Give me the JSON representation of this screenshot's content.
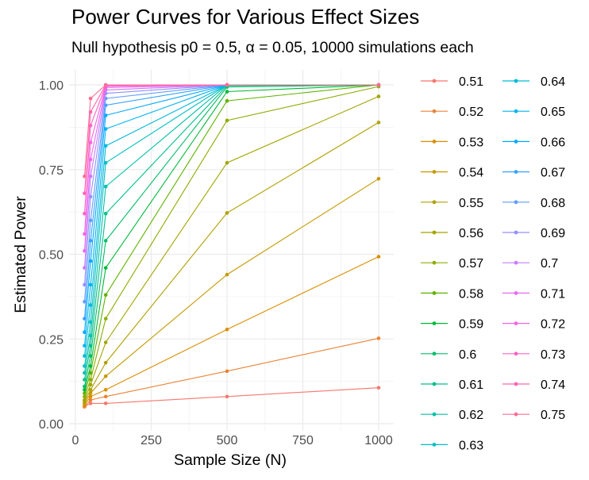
{
  "chart_data": {
    "type": "line",
    "title": "Power Curves for Various Effect Sizes",
    "subtitle": "Null hypothesis p0 = 0.5, α = 0.05, 10000 simulations each",
    "xlabel": "Sample Size (N)",
    "ylabel": "Estimated Power",
    "xlim": [
      0,
      1000
    ],
    "ylim": [
      0,
      1
    ],
    "x_ticks": [
      "0",
      "250",
      "500",
      "750",
      "1000"
    ],
    "y_ticks": [
      "0.00",
      "0.25",
      "0.50",
      "0.75",
      "1.00"
    ],
    "grid": true,
    "legend_position": "right",
    "x": [
      30,
      50,
      100,
      500,
      1000
    ],
    "series": [
      {
        "name": "0.51",
        "color": "#F8766D",
        "values": [
          0.05,
          0.06,
          0.06,
          0.08,
          0.106
        ]
      },
      {
        "name": "0.52",
        "color": "#EB8335",
        "values": [
          0.05,
          0.07,
          0.08,
          0.155,
          0.252
        ]
      },
      {
        "name": "0.53",
        "color": "#DA8F00",
        "values": [
          0.055,
          0.08,
          0.1,
          0.278,
          0.493
        ]
      },
      {
        "name": "0.54",
        "color": "#C49A00",
        "values": [
          0.06,
          0.09,
          0.14,
          0.44,
          0.723
        ]
      },
      {
        "name": "0.55",
        "color": "#AFA100",
        "values": [
          0.065,
          0.1,
          0.18,
          0.622,
          0.889
        ]
      },
      {
        "name": "0.56",
        "color": "#A3A500",
        "values": [
          0.07,
          0.115,
          0.24,
          0.77,
          0.966
        ]
      },
      {
        "name": "0.57",
        "color": "#8BAD00",
        "values": [
          0.08,
          0.13,
          0.31,
          0.895,
          0.995
        ]
      },
      {
        "name": "0.58",
        "color": "#5EB300",
        "values": [
          0.09,
          0.15,
          0.38,
          0.953,
          1.0
        ]
      },
      {
        "name": "0.59",
        "color": "#00BA38",
        "values": [
          0.1,
          0.17,
          0.46,
          0.98,
          1.0
        ]
      },
      {
        "name": "0.6",
        "color": "#00BE67",
        "values": [
          0.11,
          0.2,
          0.54,
          0.994,
          1.0
        ]
      },
      {
        "name": "0.61",
        "color": "#00C08B",
        "values": [
          0.13,
          0.23,
          0.62,
          0.998,
          1.0
        ]
      },
      {
        "name": "0.62",
        "color": "#00C1A9",
        "values": [
          0.15,
          0.26,
          0.7,
          1.0,
          1.0
        ]
      },
      {
        "name": "0.63",
        "color": "#00BFC4",
        "values": [
          0.17,
          0.3,
          0.77,
          1.0,
          1.0
        ]
      },
      {
        "name": "0.64",
        "color": "#00BAD8",
        "values": [
          0.2,
          0.35,
          0.82,
          1.0,
          1.0
        ]
      },
      {
        "name": "0.65",
        "color": "#00B4EF",
        "values": [
          0.23,
          0.41,
          0.87,
          1.0,
          1.0
        ]
      },
      {
        "name": "0.66",
        "color": "#00A9FF",
        "values": [
          0.27,
          0.48,
          0.91,
          1.0,
          1.0
        ]
      },
      {
        "name": "0.67",
        "color": "#35A2FF",
        "values": [
          0.31,
          0.54,
          0.94,
          1.0,
          1.0
        ]
      },
      {
        "name": "0.68",
        "color": "#619CFF",
        "values": [
          0.36,
          0.6,
          0.96,
          1.0,
          1.0
        ]
      },
      {
        "name": "0.69",
        "color": "#9590FF",
        "values": [
          0.41,
          0.67,
          0.975,
          1.0,
          1.0
        ]
      },
      {
        "name": "0.7",
        "color": "#C77CFF",
        "values": [
          0.46,
          0.73,
          0.985,
          1.0,
          1.0
        ]
      },
      {
        "name": "0.71",
        "color": "#E76BF3",
        "values": [
          0.51,
          0.78,
          0.992,
          1.0,
          1.0
        ]
      },
      {
        "name": "0.72",
        "color": "#F564E3",
        "values": [
          0.56,
          0.83,
          0.996,
          1.0,
          1.0
        ]
      },
      {
        "name": "0.73",
        "color": "#FF61C3",
        "values": [
          0.62,
          0.88,
          0.998,
          1.0,
          1.0
        ]
      },
      {
        "name": "0.74",
        "color": "#FF63B6",
        "values": [
          0.68,
          0.92,
          1.0,
          1.0,
          1.0
        ]
      },
      {
        "name": "0.75",
        "color": "#FF6C91",
        "values": [
          0.73,
          0.96,
          1.0,
          1.0,
          1.0
        ]
      }
    ]
  }
}
